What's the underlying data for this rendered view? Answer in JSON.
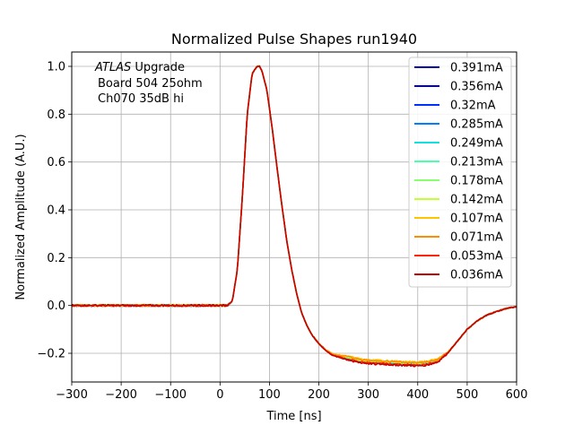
{
  "chart_data": {
    "type": "line",
    "title": "Normalized Pulse Shapes run1940",
    "xlabel": "Time [ns]",
    "ylabel": "Normalized Amplitude (A.U.)",
    "xlim": [
      -300,
      600
    ],
    "ylim": [
      -0.32,
      1.06
    ],
    "xticks": [
      -300,
      -200,
      -100,
      0,
      100,
      200,
      300,
      400,
      500,
      600
    ],
    "xtick_labels": [
      "−300",
      "−200",
      "−100",
      "0",
      "100",
      "200",
      "300",
      "400",
      "500",
      "600"
    ],
    "yticks": [
      -0.2,
      0.0,
      0.2,
      0.4,
      0.6,
      0.8,
      1.0
    ],
    "ytick_labels": [
      "−0.2",
      "0.0",
      "0.2",
      "0.4",
      "0.6",
      "0.8",
      "1.0"
    ],
    "grid": true,
    "legend_position": "top-right",
    "annotation": {
      "line1_italic": "ATLAS",
      "line1_rest": " Upgrade",
      "line2": "Board 504 25ohm",
      "line3": "Ch070 35dB hi"
    },
    "pulse_x": [
      -300,
      0,
      15,
      25,
      35,
      45,
      55,
      65,
      75,
      80,
      85,
      95,
      105,
      115,
      125,
      135,
      145,
      155,
      165,
      175,
      185,
      200,
      215,
      230,
      250,
      280,
      300,
      350,
      400,
      420,
      440,
      460,
      480,
      500,
      520,
      540,
      560,
      580,
      600
    ],
    "pulse_y": [
      0.0,
      0.0,
      0.0,
      0.02,
      0.15,
      0.45,
      0.8,
      0.97,
      1.0,
      1.0,
      0.98,
      0.9,
      0.75,
      0.58,
      0.42,
      0.27,
      0.15,
      0.05,
      -0.03,
      -0.08,
      -0.12,
      -0.16,
      -0.19,
      -0.21,
      -0.22,
      -0.235,
      -0.24,
      -0.245,
      -0.25,
      -0.245,
      -0.235,
      -0.2,
      -0.15,
      -0.1,
      -0.065,
      -0.04,
      -0.025,
      -0.012,
      -0.005
    ],
    "series": [
      {
        "name": "0.391mA",
        "color": "#00007f",
        "tail_offset": 0.005
      },
      {
        "name": "0.356mA",
        "color": "#0000d0",
        "tail_offset": 0.006
      },
      {
        "name": "0.32mA",
        "color": "#0030ff",
        "tail_offset": 0.005
      },
      {
        "name": "0.285mA",
        "color": "#0080ff",
        "tail_offset": 0.006
      },
      {
        "name": "0.249mA",
        "color": "#15e0e1",
        "tail_offset": 0.007
      },
      {
        "name": "0.213mA",
        "color": "#4bffac",
        "tail_offset": 0.008
      },
      {
        "name": "0.178mA",
        "color": "#89ff6e",
        "tail_offset": 0.008
      },
      {
        "name": "0.142mA",
        "color": "#c1ff36",
        "tail_offset": 0.009
      },
      {
        "name": "0.107mA",
        "color": "#ffc400",
        "tail_offset": 0.012
      },
      {
        "name": "0.071mA",
        "color": "#ff8d00",
        "tail_offset": 0.01
      },
      {
        "name": "0.053mA",
        "color": "#ff2400",
        "tail_offset": 0.0
      },
      {
        "name": "0.036mA",
        "color": "#c60000",
        "tail_offset": -0.003
      }
    ]
  }
}
